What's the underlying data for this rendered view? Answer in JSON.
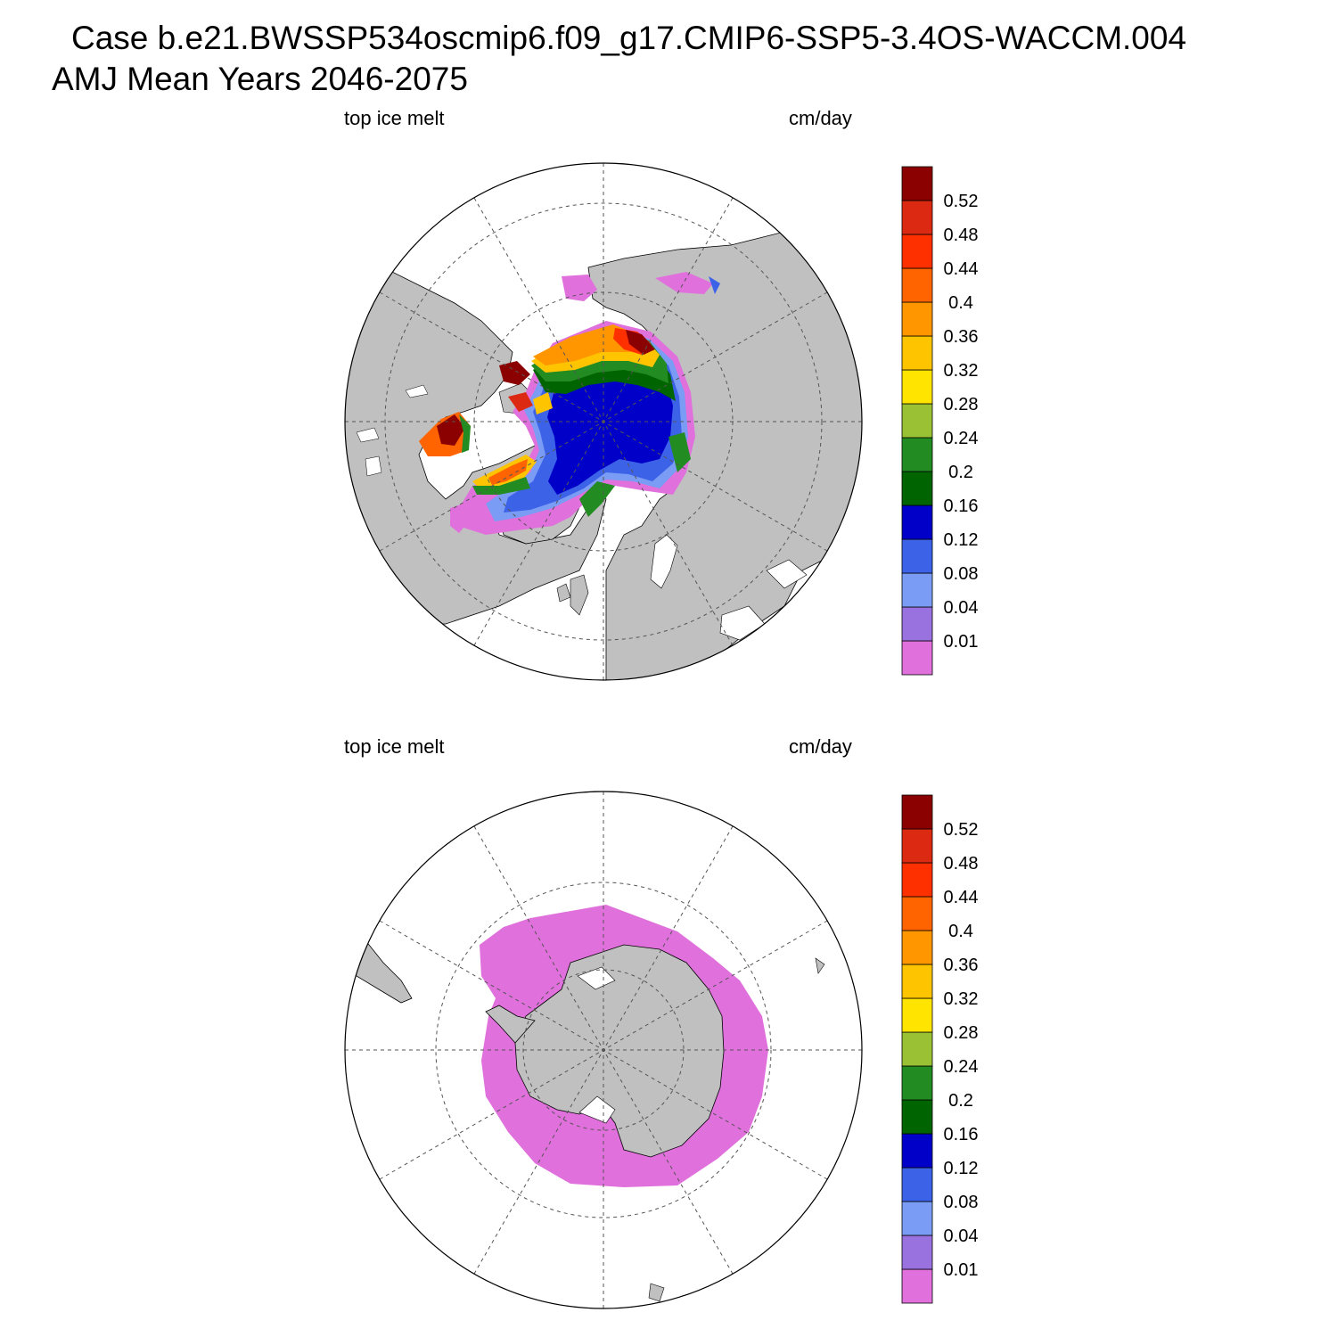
{
  "title": {
    "line1": "Case b.e21.BWSSP534oscmip6.f09_g17.CMIP6-SSP5-3.4OS-WACCM.004",
    "line2": "AMJ Mean   Years 2046-2075"
  },
  "colorbar": {
    "colors": [
      "#e070dc",
      "#9a72e0",
      "#7a9cf4",
      "#3c62e8",
      "#0000c8",
      "#006400",
      "#228b22",
      "#9ac033",
      "#ffe400",
      "#ffc400",
      "#ff9600",
      "#ff6400",
      "#ff3000",
      "#dc2a12",
      "#8b0000"
    ],
    "labels": [
      "0.01",
      "0.04",
      "0.08",
      "0.12",
      "0.16",
      "0.2",
      "0.24",
      "0.28",
      "0.32",
      "0.36",
      "0.4",
      "0.44",
      "0.48",
      "0.52"
    ]
  },
  "colors": {
    "land": "#c0c0c0",
    "ocean": "#ffffff",
    "ice_low": "#e070dc"
  },
  "panels": [
    {
      "id": "north",
      "hemisphere": "Northern",
      "variable_label": "top ice melt",
      "units_label": "cm/day"
    },
    {
      "id": "south",
      "hemisphere": "Southern",
      "variable_label": "top ice melt",
      "units_label": "cm/day"
    }
  ]
}
